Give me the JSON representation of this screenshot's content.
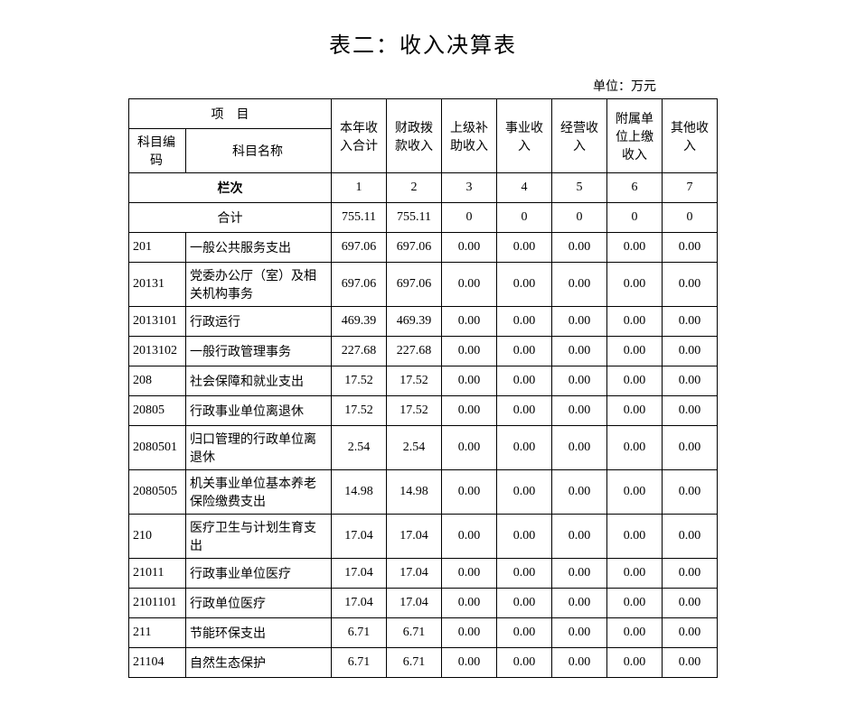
{
  "title": "表二：收入决算表",
  "unit": "单位：万元",
  "headers": {
    "project": "项　目",
    "code": "科目编码",
    "name": "科目名称",
    "col1": "本年收入合计",
    "col2": "财政拨款收入",
    "col3": "上级补助收入",
    "col4": "事业收入",
    "col5": "经营收入",
    "col6": "附属单位上缴收入",
    "col7": "其他收入",
    "lanci": "栏次",
    "heji": "合计"
  },
  "col_numbers": [
    "1",
    "2",
    "3",
    "4",
    "5",
    "6",
    "7"
  ],
  "total_row": [
    "755.11",
    "755.11",
    "0",
    "0",
    "0",
    "0",
    "0"
  ],
  "rows": [
    {
      "code": "201",
      "name": "一般公共服务支出",
      "vals": [
        "697.06",
        "697.06",
        "0.00",
        "0.00",
        "0.00",
        "0.00",
        "0.00"
      ]
    },
    {
      "code": "20131",
      "name": "党委办公厅（室）及相关机构事务",
      "vals": [
        "697.06",
        "697.06",
        "0.00",
        "0.00",
        "0.00",
        "0.00",
        "0.00"
      ]
    },
    {
      "code": "2013101",
      "name": "行政运行",
      "vals": [
        "469.39",
        "469.39",
        "0.00",
        "0.00",
        "0.00",
        "0.00",
        "0.00"
      ]
    },
    {
      "code": "2013102",
      "name": "一般行政管理事务",
      "vals": [
        "227.68",
        "227.68",
        "0.00",
        "0.00",
        "0.00",
        "0.00",
        "0.00"
      ]
    },
    {
      "code": "208",
      "name": "社会保障和就业支出",
      "vals": [
        "17.52",
        "17.52",
        "0.00",
        "0.00",
        "0.00",
        "0.00",
        "0.00"
      ]
    },
    {
      "code": "20805",
      "name": "行政事业单位离退休",
      "vals": [
        "17.52",
        "17.52",
        "0.00",
        "0.00",
        "0.00",
        "0.00",
        "0.00"
      ]
    },
    {
      "code": "2080501",
      "name": "归口管理的行政单位离退休",
      "vals": [
        "2.54",
        "2.54",
        "0.00",
        "0.00",
        "0.00",
        "0.00",
        "0.00"
      ]
    },
    {
      "code": "2080505",
      "name": "机关事业单位基本养老保险缴费支出",
      "vals": [
        "14.98",
        "14.98",
        "0.00",
        "0.00",
        "0.00",
        "0.00",
        "0.00"
      ]
    },
    {
      "code": "210",
      "name": "医疗卫生与计划生育支出",
      "vals": [
        "17.04",
        "17.04",
        "0.00",
        "0.00",
        "0.00",
        "0.00",
        "0.00"
      ]
    },
    {
      "code": "21011",
      "name": "行政事业单位医疗",
      "vals": [
        "17.04",
        "17.04",
        "0.00",
        "0.00",
        "0.00",
        "0.00",
        "0.00"
      ]
    },
    {
      "code": "2101101",
      "name": "行政单位医疗",
      "vals": [
        "17.04",
        "17.04",
        "0.00",
        "0.00",
        "0.00",
        "0.00",
        "0.00"
      ]
    },
    {
      "code": "211",
      "name": "节能环保支出",
      "vals": [
        "6.71",
        "6.71",
        "0.00",
        "0.00",
        "0.00",
        "0.00",
        "0.00"
      ]
    },
    {
      "code": "21104",
      "name": "自然生态保护",
      "vals": [
        "6.71",
        "6.71",
        "0.00",
        "0.00",
        "0.00",
        "0.00",
        "0.00"
      ]
    }
  ]
}
